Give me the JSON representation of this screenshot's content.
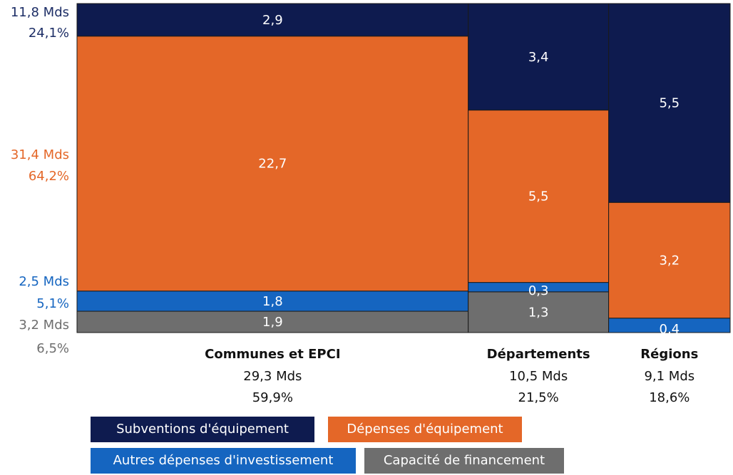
{
  "chart_data": {
    "type": "mosaic",
    "title": "",
    "xlabel": "",
    "ylabel": "",
    "unit": "Mds",
    "categories": [
      {
        "name": "Communes et EPCI",
        "total": "29,3 Mds",
        "share": "59,9%",
        "share_value": 59.9,
        "segments": [
          {
            "series": "Subventions d'équipement",
            "value": 2.9,
            "label": "2,9"
          },
          {
            "series": "Dépenses d'équipement",
            "value": 22.7,
            "label": "22,7"
          },
          {
            "series": "Autres dépenses d'investissement",
            "value": 1.8,
            "label": "1,8"
          },
          {
            "series": "Capacité de financement",
            "value": 1.9,
            "label": "1,9"
          }
        ]
      },
      {
        "name": "Départements",
        "total": "10,5 Mds",
        "share": "21,5%",
        "share_value": 21.5,
        "segments": [
          {
            "series": "Subventions d'équipement",
            "value": 3.4,
            "label": "3,4"
          },
          {
            "series": "Dépenses d'équipement",
            "value": 5.5,
            "label": "5,5"
          },
          {
            "series": "Autres dépenses d'investissement",
            "value": 0.3,
            "label": "0,3"
          },
          {
            "series": "Capacité de financement",
            "value": 1.3,
            "label": "1,3"
          }
        ]
      },
      {
        "name": "Régions",
        "total": "9,1 Mds",
        "share": "18,6%",
        "share_value": 18.6,
        "segments": [
          {
            "series": "Subventions d'équipement",
            "value": 5.5,
            "label": "5,5"
          },
          {
            "series": "Dépenses d'équipement",
            "value": 3.2,
            "label": "3,2"
          },
          {
            "series": "Autres dépenses d'investissement",
            "value": 0.4,
            "label": "0,4"
          }
        ]
      }
    ],
    "series_totals": [
      {
        "series": "Subventions d'équipement",
        "amount": "11,8 Mds",
        "share": "24,1%"
      },
      {
        "series": "Dépenses d'équipement",
        "amount": "31,4 Mds",
        "share": "64,2%"
      },
      {
        "series": "Autres dépenses d'investissement",
        "amount": "2,5 Mds",
        "share": "5,1%"
      },
      {
        "series": "Capacité de financement",
        "amount": "3,2 Mds",
        "share": "6,5%"
      }
    ],
    "legend": [
      {
        "label": "Subventions d'équipement",
        "color": "#0e1b4f"
      },
      {
        "label": "Dépenses d'équipement",
        "color": "#e46728"
      },
      {
        "label": "Autres dépenses d'investissement",
        "color": "#1565c0"
      },
      {
        "label": "Capacité de financement",
        "color": "#6e6e6e"
      }
    ],
    "series_colors": {
      "Subventions d'équipement": "#0e1b4f",
      "Dépenses d'équipement": "#e46728",
      "Autres dépenses d'investissement": "#1565c0",
      "Capacité de financement": "#6e6e6e"
    }
  }
}
